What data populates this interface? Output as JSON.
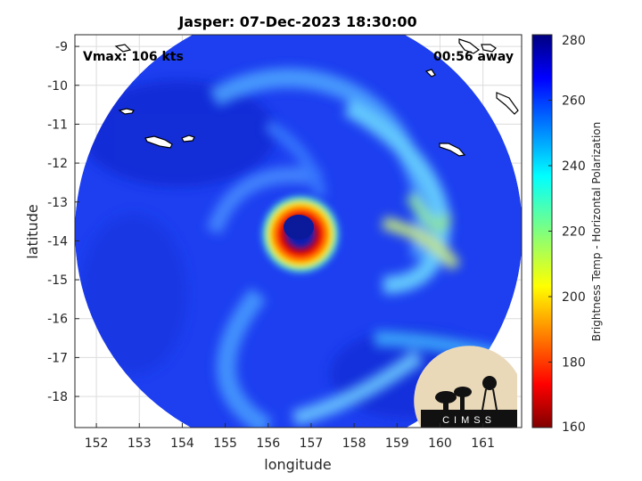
{
  "title": "Jasper: 07-Dec-2023 18:30:00",
  "vmax_label": "Vmax: 106 kts",
  "time_away_label": "00:56 away",
  "map": {
    "xlabel": "longitude",
    "ylabel": "latitude",
    "lon_range": [
      151.5,
      161.9
    ],
    "lat_range": [
      -18.8,
      -8.7
    ],
    "x_ticks": [
      152,
      153,
      154,
      155,
      156,
      157,
      158,
      159,
      160,
      161
    ],
    "y_ticks": [
      -9,
      -10,
      -11,
      -12,
      -13,
      -14,
      -15,
      -16,
      -17,
      -18
    ],
    "grid": true,
    "storm_center": {
      "lon": 156.7,
      "lat": -13.9
    }
  },
  "colorbar": {
    "label": "Brightness Temp - Horizontal Polarization",
    "min": 160,
    "max": 280,
    "ticks": [
      280,
      260,
      240,
      220,
      200,
      180,
      160
    ],
    "colormap": "jet"
  },
  "logo": {
    "text": "CIMSS"
  },
  "colors": {
    "background_warm": "#1a3ef0",
    "eyewall_cold": "#e21a00",
    "band_mid": "#5fe0ff"
  }
}
